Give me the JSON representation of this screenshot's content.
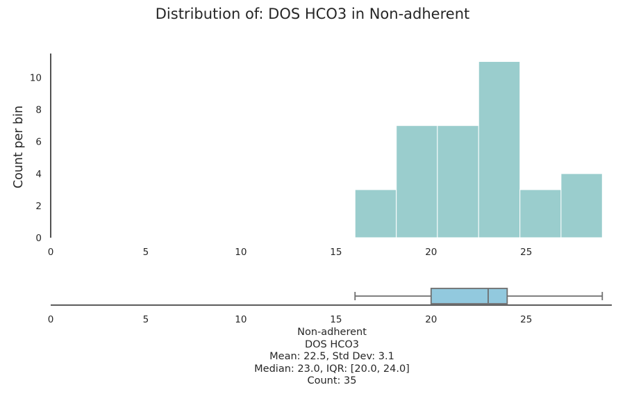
{
  "title": "Distribution of: DOS HCO3 in Non-adherent",
  "chart_data": [
    {
      "type": "histogram",
      "ylabel": "Count per bin",
      "xlabel": "",
      "xlim": [
        0,
        29.5
      ],
      "ylim": [
        0,
        11.5
      ],
      "xticks": [
        0,
        5,
        10,
        15,
        20,
        25
      ],
      "yticks": [
        0,
        2,
        4,
        6,
        8,
        10
      ],
      "bins": [
        {
          "start": 16.0,
          "end": 18.17,
          "count": 3
        },
        {
          "start": 18.17,
          "end": 20.33,
          "count": 7
        },
        {
          "start": 20.33,
          "end": 22.5,
          "count": 7
        },
        {
          "start": 22.5,
          "end": 24.67,
          "count": 11
        },
        {
          "start": 24.67,
          "end": 26.83,
          "count": 3
        },
        {
          "start": 26.83,
          "end": 29.0,
          "count": 4
        }
      ],
      "color": "#9acdcd",
      "grid": false
    },
    {
      "type": "boxplot",
      "xlim": [
        0,
        29.5
      ],
      "xticks": [
        0,
        5,
        10,
        15,
        20,
        25
      ],
      "min": 16.0,
      "q1": 20.0,
      "median": 23.0,
      "q3": 24.0,
      "max": 29.0,
      "color": "#92c9de"
    }
  ],
  "stats": {
    "group": "Non-adherent",
    "variable": "DOS HCO3",
    "mean_sd": "Mean: 22.5, Std Dev: 3.1",
    "median_iqr": "Median: 23.0, IQR: [20.0, 24.0]",
    "count": "Count: 35"
  }
}
